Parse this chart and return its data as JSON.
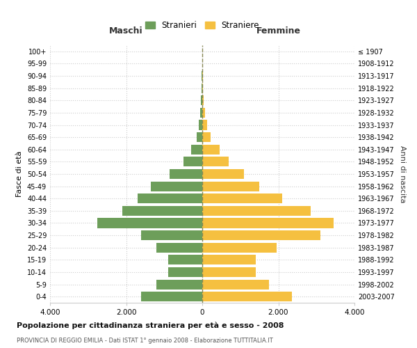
{
  "age_groups": [
    "0-4",
    "5-9",
    "10-14",
    "15-19",
    "20-24",
    "25-29",
    "30-34",
    "35-39",
    "40-44",
    "45-49",
    "50-54",
    "55-59",
    "60-64",
    "65-69",
    "70-74",
    "75-79",
    "80-84",
    "85-89",
    "90-94",
    "95-99",
    "100+"
  ],
  "birth_years": [
    "2003-2007",
    "1998-2002",
    "1993-1997",
    "1988-1992",
    "1983-1987",
    "1978-1982",
    "1973-1977",
    "1968-1972",
    "1963-1967",
    "1958-1962",
    "1953-1957",
    "1948-1952",
    "1943-1947",
    "1938-1942",
    "1933-1937",
    "1928-1932",
    "1923-1927",
    "1918-1922",
    "1913-1917",
    "1908-1912",
    "≤ 1907"
  ],
  "maschi": [
    1600,
    1200,
    900,
    900,
    1200,
    1600,
    2750,
    2100,
    1700,
    1350,
    850,
    500,
    300,
    150,
    100,
    60,
    30,
    15,
    10,
    5,
    5
  ],
  "femmine": [
    2350,
    1750,
    1400,
    1400,
    1950,
    3100,
    3450,
    2850,
    2100,
    1500,
    1100,
    700,
    450,
    220,
    130,
    80,
    40,
    20,
    10,
    5,
    5
  ],
  "color_maschi": "#6d9e5a",
  "color_femmine": "#f5c040",
  "title": "Popolazione per cittadinanza straniera per età e sesso - 2008",
  "subtitle": "PROVINCIA DI REGGIO EMILIA - Dati ISTAT 1° gennaio 2008 - Elaborazione TUTTITALIA.IT",
  "xlabel_maschi": "Maschi",
  "xlabel_femmine": "Femmine",
  "ylabel_left": "Fasce di età",
  "ylabel_right": "Anni di nascita",
  "legend_maschi": "Stranieri",
  "legend_femmine": "Straniere",
  "xlim": 4000,
  "xticklabels": [
    "4.000",
    "2.000",
    "0",
    "2.000",
    "4.000"
  ],
  "background_color": "#ffffff",
  "grid_color": "#cccccc"
}
